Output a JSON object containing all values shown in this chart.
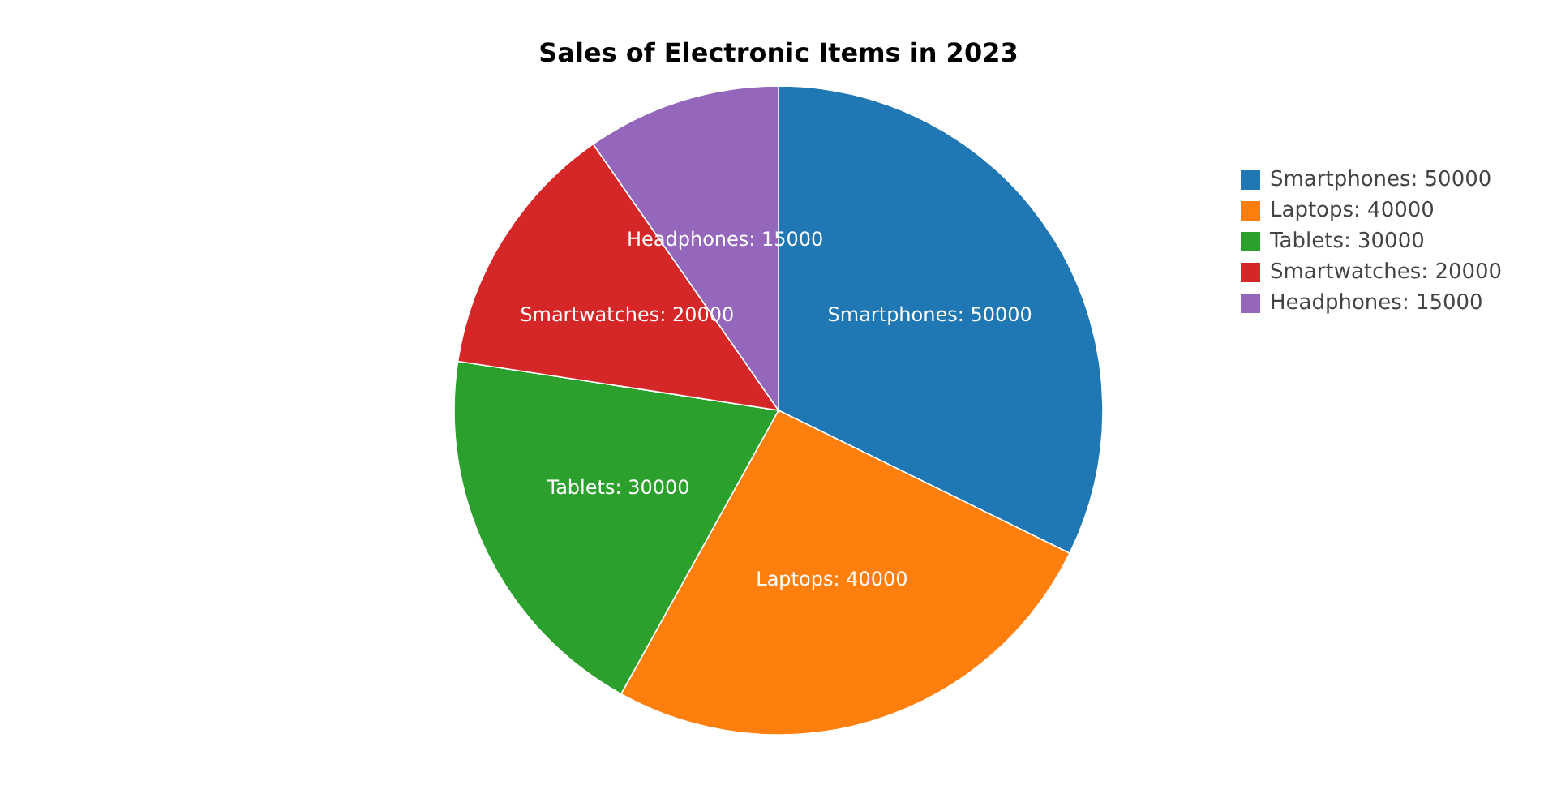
{
  "chart_data": {
    "type": "pie",
    "title": "Sales of Electronic Items in 2023",
    "categories": [
      "Smartphones: 50000",
      "Laptops: 40000",
      "Tablets: 30000",
      "Smartwatches: 20000",
      "Headphones: 15000"
    ],
    "values": [
      50000,
      40000,
      30000,
      20000,
      15000
    ],
    "value_labels": [
      "Smartphones: 50000",
      "Laptops: 40000",
      "Tablets: 30000",
      "Smartwatches: 20000",
      "Headphones: 15000"
    ],
    "colors": [
      "#1f77b4",
      "#ff7f0e",
      "#2ca02c",
      "#d62728",
      "#9467bd"
    ],
    "legend": "top right"
  }
}
